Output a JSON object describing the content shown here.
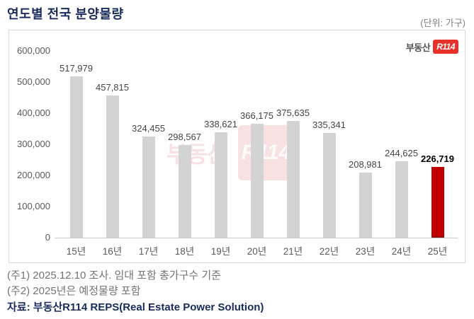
{
  "header": {
    "title": "연도별 전국 분양물량",
    "unit": "(단위: 가구)"
  },
  "brand": {
    "text": "부동산",
    "badge": "R114"
  },
  "chart_data": {
    "type": "bar",
    "title": "연도별 전국 분양물량",
    "unit": "(단위: 가구)",
    "categories": [
      "15년",
      "16년",
      "17년",
      "18년",
      "19년",
      "20년",
      "21년",
      "22년",
      "23년",
      "24년",
      "25년"
    ],
    "values": [
      517979,
      457815,
      324455,
      298567,
      338621,
      366175,
      375635,
      335341,
      208981,
      244625,
      226719
    ],
    "value_labels": [
      "517,979",
      "457,815",
      "324,455",
      "298,567",
      "338,621",
      "366,175",
      "375,635",
      "335,341",
      "208,981",
      "244,625",
      "226,719"
    ],
    "ylim": [
      0,
      600000
    ],
    "ytick_interval": 100000,
    "ytick_labels": [
      "0",
      "100,000",
      "200,000",
      "300,000",
      "400,000",
      "500,000",
      "600,000"
    ],
    "grid": false,
    "legend": false,
    "bar_color": "#d3d3d3",
    "highlight_index": 10,
    "highlight_color": "#c00000"
  },
  "footnotes": [
    "(주1) 2025.12.10 조사. 임대 포함 총가구수 기준",
    "(주2) 2025년은 예정물량 포함"
  ],
  "source": "자료: 부동산R114 REPS(Real Estate Power Solution)"
}
